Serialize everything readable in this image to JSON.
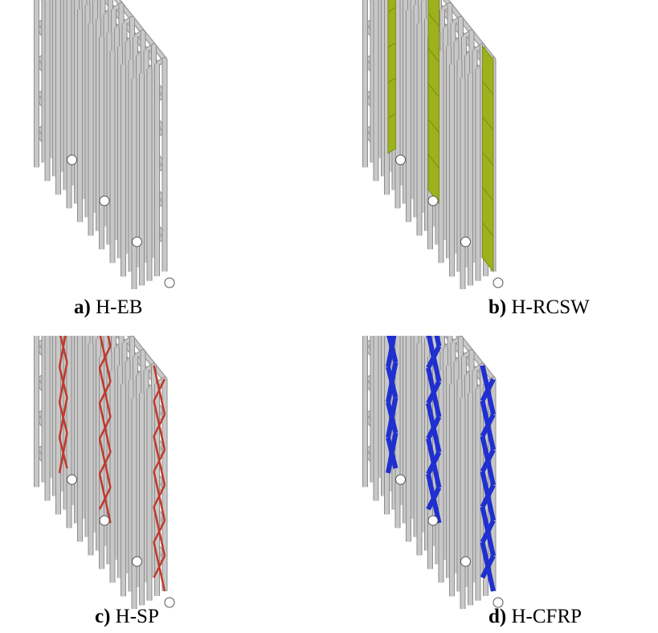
{
  "panels": [
    {
      "letter": "a)",
      "name": " H-EB",
      "system": "none",
      "accent": ""
    },
    {
      "letter": "b)",
      "name": "  H-RCSW",
      "system": "shear-wall",
      "accent": "#9cb11c"
    },
    {
      "letter": "c)",
      "name": " H-SP",
      "system": "steel-bracing",
      "accent": "#c0392b"
    },
    {
      "letter": "d)",
      "name": " H-CFRP",
      "system": "cfrp-strips",
      "accent": "#1f2fd0"
    }
  ],
  "colors": {
    "frame": "#c8c8c8",
    "frame_edge": "#8e8e8e",
    "support": "#555555"
  }
}
